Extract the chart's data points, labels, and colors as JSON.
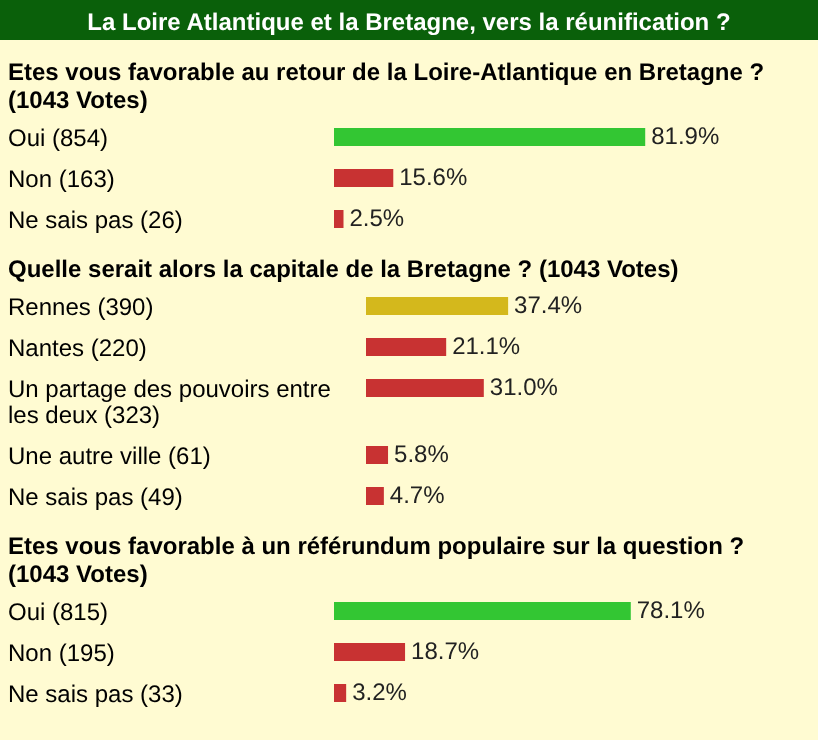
{
  "chart_data": [
    {
      "type": "bar",
      "orientation": "horizontal",
      "title": "La Loire Atlantique et la Bretagne, vers la réunification ?",
      "subtitle": "Etes vous favorable au retour de la Loire-Atlantique en Bretagne ? (1043 Votes)",
      "categories": [
        "Oui (854)",
        "Non (163)",
        "Ne sais pas (26)"
      ],
      "values": [
        81.9,
        15.6,
        2.5
      ],
      "value_labels": [
        "81.9%",
        "15.6%",
        "2.5%"
      ],
      "colors": [
        "#33c633",
        "#c83232",
        "#c83232"
      ]
    },
    {
      "type": "bar",
      "orientation": "horizontal",
      "title": "Quelle serait alors la capitale de la Bretagne ? (1043 Votes)",
      "categories": [
        "Rennes (390)",
        "Nantes (220)",
        "Un partage des pouvoirs entre les deux (323)",
        "Une autre ville (61)",
        "Ne sais pas (49)"
      ],
      "values": [
        37.4,
        21.1,
        31.0,
        5.8,
        4.7
      ],
      "value_labels": [
        "37.4%",
        "21.1%",
        "31.0%",
        "5.8%",
        "4.7%"
      ],
      "colors": [
        "#d4b81c",
        "#c83232",
        "#c83232",
        "#c83232",
        "#c83232"
      ]
    },
    {
      "type": "bar",
      "orientation": "horizontal",
      "title": "Etes vous favorable à un référundum populaire sur la question ? (1043 Votes)",
      "categories": [
        "Oui (815)",
        "Non (195)",
        "Ne sais pas (33)"
      ],
      "values": [
        78.1,
        18.7,
        3.2
      ],
      "value_labels": [
        "78.1%",
        "18.7%",
        "3.2%"
      ],
      "colors": [
        "#33c633",
        "#c83232",
        "#c83232"
      ]
    }
  ]
}
